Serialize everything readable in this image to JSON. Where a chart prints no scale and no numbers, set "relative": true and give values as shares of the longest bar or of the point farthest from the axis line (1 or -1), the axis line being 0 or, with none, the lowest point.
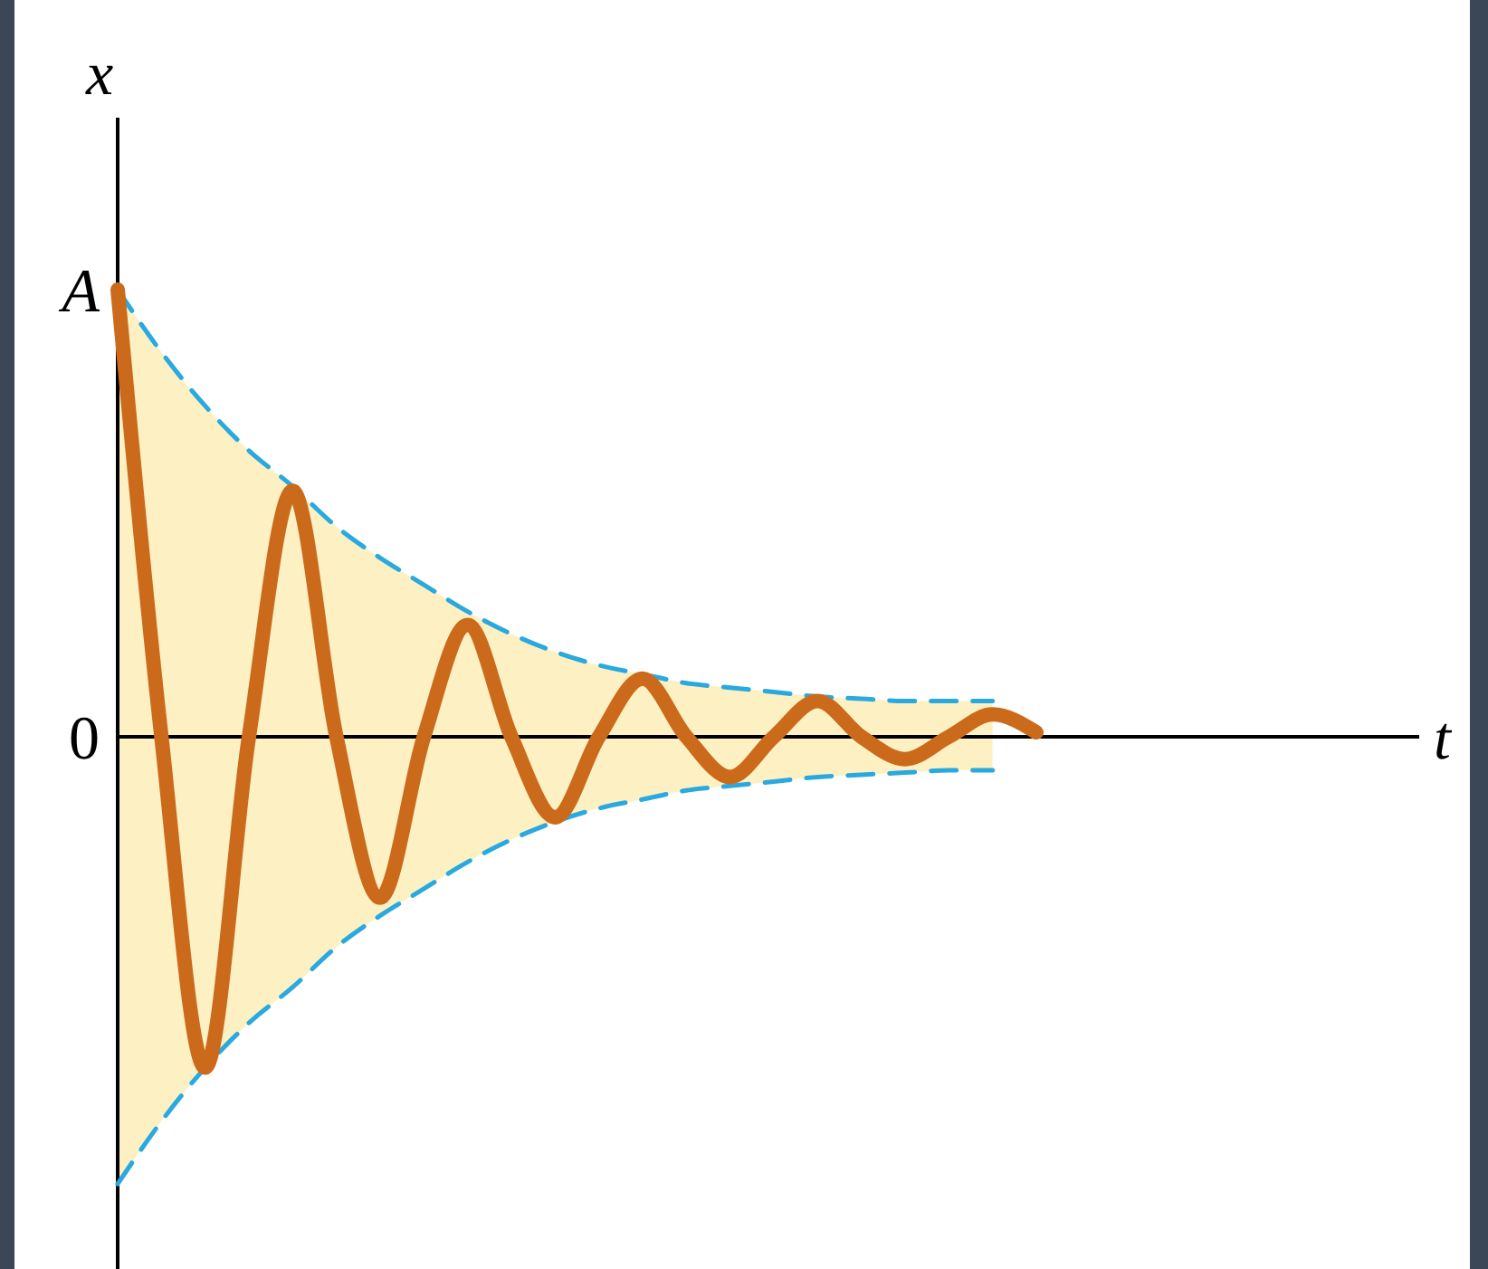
{
  "chart_data": {
    "type": "line",
    "relative": true,
    "xlabel": "t",
    "ylabel": "x",
    "categories": [
      null,
      null,
      null,
      null,
      null,
      null,
      null,
      null,
      null,
      null,
      null,
      null,
      null,
      null,
      null,
      null,
      null,
      null,
      null,
      null,
      null,
      null,
      null,
      null,
      null,
      null,
      null,
      null,
      null,
      null,
      null
    ],
    "annotations": [
      "A",
      "0"
    ],
    "series": [
      {
        "type": "line",
        "line_style": "dashed",
        "color": "#2aa9df",
        "values": [
          1.0,
          0.86,
          0.74,
          0.64,
          0.56,
          0.47,
          0.4,
          0.34,
          0.28,
          0.23,
          0.19,
          0.16,
          0.14,
          0.12,
          0.11,
          0.1,
          0.09,
          0.085,
          0.08,
          0.08,
          0.08,
          null,
          null,
          null,
          null,
          null,
          null,
          null,
          null,
          null,
          null
        ]
      },
      {
        "type": "line",
        "line_style": "dashed",
        "color": "#2aa9df",
        "values": [
          -1.0,
          -0.86,
          -0.74,
          -0.64,
          -0.56,
          -0.47,
          -0.4,
          -0.34,
          -0.28,
          -0.23,
          -0.19,
          -0.16,
          -0.14,
          -0.12,
          -0.11,
          -0.1,
          -0.09,
          -0.085,
          -0.08,
          -0.075,
          -0.075,
          null,
          null,
          null,
          null,
          null,
          null,
          null,
          null,
          null,
          null
        ]
      },
      {
        "type": "line",
        "line_style": "solid",
        "color": "#cc6a1c",
        "values": [
          1.0,
          0,
          -0.74,
          0,
          0.55,
          0,
          -0.36,
          0,
          0.25,
          0,
          -0.18,
          0,
          0.13,
          0,
          -0.09,
          0,
          0.08,
          0,
          -0.05,
          0,
          0.05,
          0.01,
          null,
          null,
          null,
          null,
          null,
          null,
          null,
          null,
          null
        ],
        "lower": [
          -1.0,
          -0.86,
          -0.74,
          -0.64,
          -0.56,
          -0.47,
          -0.4,
          -0.34,
          -0.28,
          -0.23,
          -0.19,
          -0.16,
          -0.14,
          -0.12,
          -0.11,
          -0.1,
          -0.09,
          -0.085,
          -0.08,
          -0.075,
          -0.075,
          null,
          null,
          null,
          null,
          null,
          null,
          null,
          null,
          null,
          null
        ],
        "upper": [
          1.0,
          0.86,
          0.74,
          0.64,
          0.56,
          0.47,
          0.4,
          0.34,
          0.28,
          0.23,
          0.19,
          0.16,
          0.14,
          0.12,
          0.11,
          0.1,
          0.09,
          0.085,
          0.08,
          0.08,
          0.08,
          null,
          null,
          null,
          null,
          null,
          null,
          null,
          null,
          null,
          null
        ]
      }
    ]
  }
}
